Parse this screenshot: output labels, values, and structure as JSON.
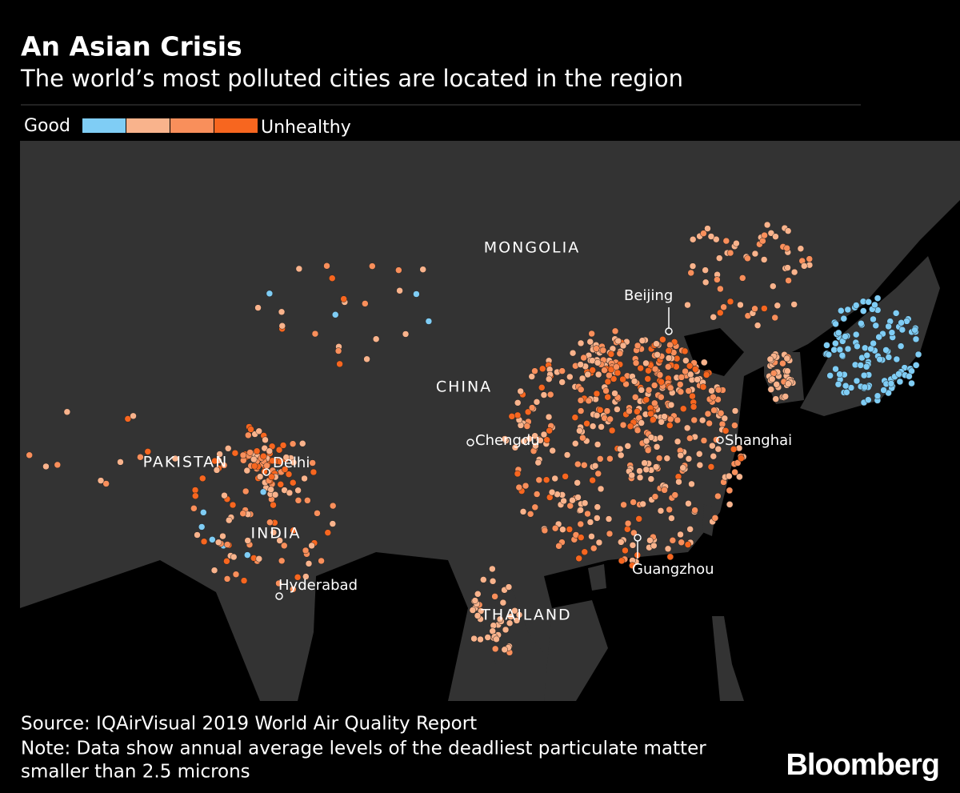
{
  "header": {
    "title": "An Asian Crisis",
    "subtitle": "The world’s most polluted cities are located in the region"
  },
  "legend": {
    "low_label": "Good",
    "high_label": "Unhealthy",
    "colors": [
      "#7fcdf5",
      "#f9b38c",
      "#f98f5b",
      "#f7661f"
    ]
  },
  "map": {
    "country_labels": [
      "MONGOLIA",
      "CHINA",
      "PAKISTAN",
      "INDIA",
      "THAILAND"
    ],
    "city_labels": [
      "Beijing",
      "Shanghai",
      "Chengdu",
      "Delhi",
      "Hyderabad",
      "Guangzhou"
    ]
  },
  "footer": {
    "source": "Source: IQAirVisual 2019 World Air Quality Report",
    "note_lines": [
      "Note: Data show annual average levels of the deadliest particulate matter",
      "smaller than 2.5 microns"
    ],
    "brand": "Bloomberg"
  }
}
